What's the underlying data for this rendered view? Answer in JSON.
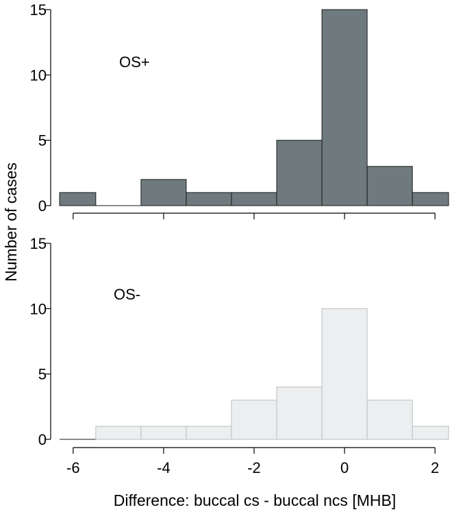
{
  "chart_data": [
    {
      "type": "bar",
      "label": "OS+",
      "bin_edges": [
        -6.5,
        -5.5,
        -4.5,
        -3.5,
        -2.5,
        -1.5,
        -0.5,
        0.5,
        1.5,
        2.5
      ],
      "counts": [
        1,
        0,
        2,
        1,
        1,
        5,
        15,
        3,
        1
      ],
      "ylim": [
        0,
        15
      ],
      "yticks": [
        "0",
        "5",
        "10",
        "15"
      ],
      "color": "#6f7a7f"
    },
    {
      "type": "bar",
      "label": "OS-",
      "bin_edges": [
        -6.5,
        -5.5,
        -4.5,
        -3.5,
        -2.5,
        -1.5,
        -0.5,
        0.5,
        1.5,
        2.5
      ],
      "counts": [
        0,
        1,
        1,
        1,
        3,
        4,
        10,
        3,
        1
      ],
      "ylim": [
        0,
        15
      ],
      "yticks": [
        "0",
        "5",
        "10",
        "15"
      ],
      "color": "#eceeef"
    }
  ],
  "axes": {
    "xlabel": "Difference: buccal cs - buccal ncs [MHB]",
    "ylabel": "Number of cases",
    "xticks": [
      "-6",
      "-4",
      "-2",
      "0",
      "2"
    ],
    "xlim": [
      -6.3,
      2.3
    ]
  }
}
